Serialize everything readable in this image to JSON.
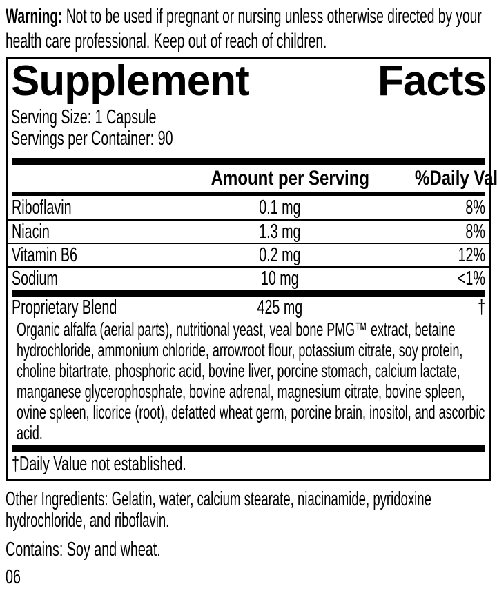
{
  "warning": {
    "label": "Warning:",
    "text": " Not to be used if pregnant or nursing unless otherwise directed by your health care professional. Keep out of reach of children."
  },
  "panel": {
    "title_words": [
      "Supplement",
      "Facts"
    ],
    "serving_size": "Serving Size: 1 Capsule",
    "servings_per_container": "Servings per Container: 90",
    "columns": {
      "amount": "Amount per Serving",
      "daily_value": "%Daily Value"
    },
    "nutrients": [
      {
        "name": "Riboflavin",
        "amount": "0.1 mg",
        "dv": "8%"
      },
      {
        "name": "Niacin",
        "amount": "1.3 mg",
        "dv": "8%"
      },
      {
        "name": "Vitamin B6",
        "amount": "0.2 mg",
        "dv": "12%"
      },
      {
        "name": "Sodium",
        "amount": "10 mg",
        "dv": "<1%"
      }
    ],
    "proprietary": {
      "name": "Proprietary Blend",
      "amount": "425 mg",
      "dv": "†",
      "ingredients": "Organic alfalfa (aerial parts), nutritional yeast, veal bone PMG™ extract, betaine hydrochloride, ammonium chloride, arrowroot flour, potassium citrate, soy protein, choline bitartrate, phosphoric acid, bovine liver, porcine stomach, calcium lactate, manganese glycerophosphate, bovine adrenal, magnesium citrate, bovine spleen, ovine spleen, licorice (root), defatted wheat germ, porcine brain, inositol, and ascorbic acid."
    },
    "footnote": "†Daily Value not established."
  },
  "other_ingredients": "Other Ingredients: Gelatin, water, calcium stearate, niacinamide, pyridoxine hydrochloride, and riboflavin.",
  "contains": "Contains: Soy and wheat.",
  "code": "06",
  "colors": {
    "ink": "#000000",
    "paper": "#ffffff"
  }
}
